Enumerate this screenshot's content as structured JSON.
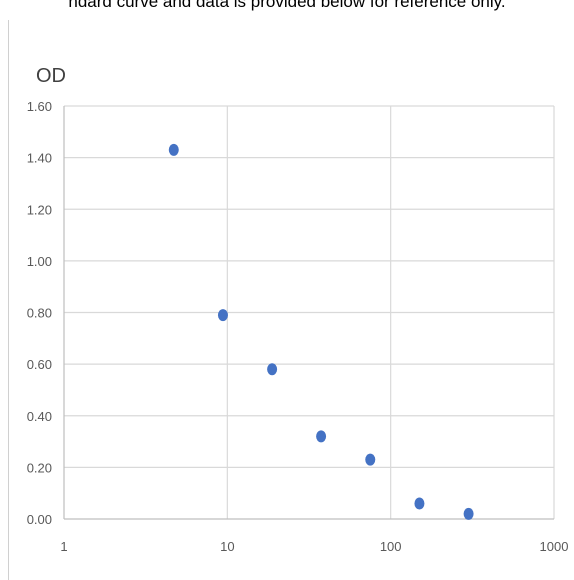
{
  "caption": "ndard curve and data is provided below for reference only.",
  "chart_data": {
    "type": "scatter",
    "title": "",
    "xlabel": "",
    "ylabel": "OD",
    "xscale": "log",
    "xlim": [
      1,
      1000
    ],
    "ylim": [
      0,
      1.6
    ],
    "xticks": [
      "1",
      "10",
      "100",
      "1000"
    ],
    "yticks": [
      "0.00",
      "0.20",
      "0.40",
      "0.60",
      "0.80",
      "1.00",
      "1.20",
      "1.40",
      "1.60"
    ],
    "grid": true,
    "legend": false,
    "color": "#4472c4",
    "series": [
      {
        "x": [
          4.7,
          9.4,
          18.8,
          37.5,
          75,
          150,
          300
        ],
        "y": [
          1.43,
          0.79,
          0.58,
          0.32,
          0.23,
          0.06,
          0.02
        ]
      }
    ]
  }
}
